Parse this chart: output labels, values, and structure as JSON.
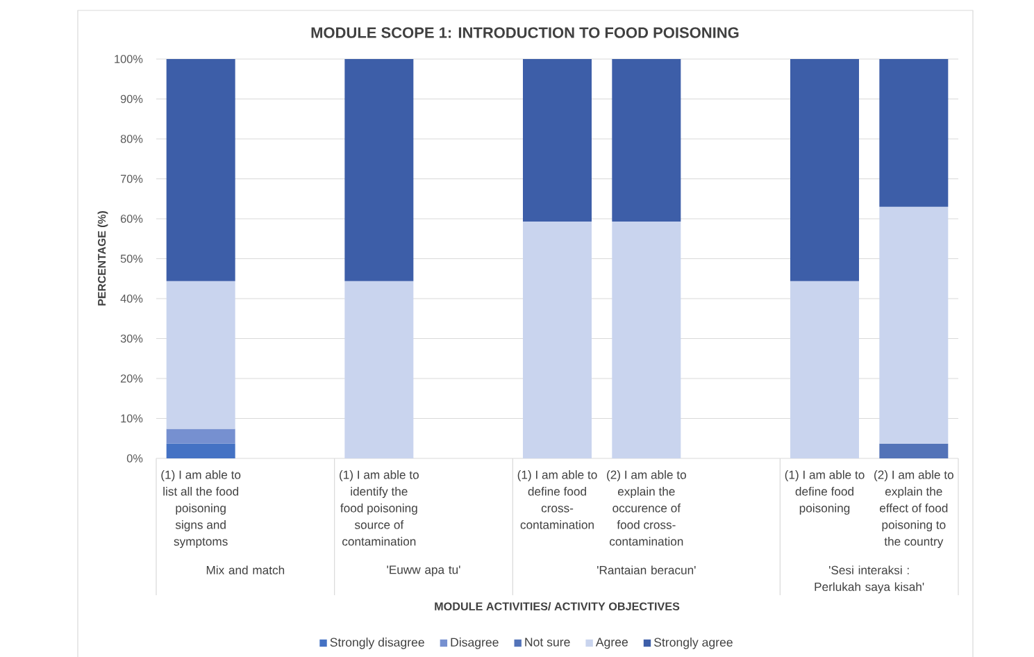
{
  "chart_data": {
    "type": "bar",
    "stacked": true,
    "title": "MODULE SCOPE 1: INTRODUCTION TO FOOD POISONING",
    "xlabel": "MODULE ACTIVITIES/ ACTIVITY OBJECTIVES",
    "ylabel": "PERCENTAGE (%)",
    "categories": [
      "(1) I am able to list all the food poisoning signs and symptoms",
      null,
      "(1) I am able to identify the food poisoning source of contamination",
      null,
      "(1) I am able to define food cross-contamination",
      "(2) I am able to explain the occurence of food cross-contamination",
      null,
      "(1) I am able to define food poisoning",
      "(2) I am able to explain the effect of food poisoning to the country"
    ],
    "annotations": [
      "Mix and match",
      "'Euww apa tu'",
      "'Rantaian beracun'",
      "'Sesi interaksi : Perlukah saya kisah'"
    ],
    "series": [
      {
        "name": "Strongly disagree",
        "color": "#4472c4",
        "values": [
          3.7,
          null,
          0,
          null,
          0,
          0,
          null,
          0,
          0
        ]
      },
      {
        "name": "Disagree",
        "color": "#7690d0",
        "values": [
          3.7,
          null,
          0,
          null,
          0,
          0,
          null,
          0,
          0
        ]
      },
      {
        "name": "Not sure",
        "color": "#5373b8",
        "values": [
          0,
          null,
          0,
          null,
          0,
          0,
          null,
          0,
          3.7
        ]
      },
      {
        "name": "Agree",
        "color": "#c9d4ee",
        "values": [
          37,
          null,
          44.4,
          null,
          59.3,
          59.3,
          null,
          44.4,
          59.3
        ]
      },
      {
        "name": "Strongly agree",
        "color": "#3d5ea8",
        "values": [
          55.6,
          null,
          55.6,
          null,
          40.7,
          40.7,
          null,
          55.6,
          37
        ]
      }
    ],
    "ylim": [
      0,
      100
    ],
    "yticks": [
      {
        "value": 0,
        "label": "0%"
      },
      {
        "value": 10,
        "label": "10%"
      },
      {
        "value": 20,
        "label": "20%"
      },
      {
        "value": 30,
        "label": "30%"
      },
      {
        "value": 40,
        "label": "40%"
      },
      {
        "value": 50,
        "label": "50%"
      },
      {
        "value": 60,
        "label": "60%"
      },
      {
        "value": 70,
        "label": "70%"
      },
      {
        "value": 80,
        "label": "80%"
      },
      {
        "value": 90,
        "label": "90%"
      },
      {
        "value": 100,
        "label": "100%"
      }
    ],
    "grid": "y",
    "legend": "bottom"
  }
}
